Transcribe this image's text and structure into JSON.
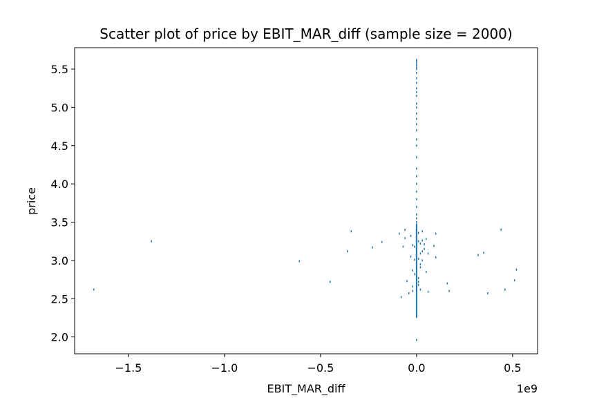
{
  "chart_data": {
    "type": "scatter",
    "title": "Scatter plot of price by EBIT_MAR_diff (sample size = 2000)",
    "xlabel": "EBIT_MAR_diff",
    "ylabel": "price",
    "x_offset_label": "1e9",
    "x_unit_multiplier": 1000000000,
    "xlim": [
      -1.78,
      0.63
    ],
    "ylim": [
      1.78,
      5.78
    ],
    "x_ticks": [
      -1.5,
      -1.0,
      -0.5,
      0.0,
      0.5
    ],
    "x_tick_labels": [
      "−1.5",
      "−1.0",
      "−0.5",
      "0.0",
      "0.5"
    ],
    "y_ticks": [
      2.0,
      2.5,
      3.0,
      3.5,
      4.0,
      4.5,
      5.0,
      5.5
    ],
    "y_tick_labels": [
      "2.0",
      "2.5",
      "3.0",
      "3.5",
      "4.0",
      "4.5",
      "5.0",
      "5.5"
    ],
    "grid": false,
    "legend": "none",
    "marker_color": "#1f77b4",
    "marker": "pixel",
    "series": [
      {
        "x": [
          -1.68,
          -1.38,
          -0.61,
          -0.45,
          -0.34,
          -0.36,
          -0.23,
          -0.18,
          -0.09,
          -0.07,
          -0.06,
          -0.05,
          -0.04,
          -0.08,
          -0.06,
          0.03,
          0.04,
          0.05,
          0.06,
          0.09,
          0.1,
          0.1,
          0.05,
          0.06,
          0.16,
          0.17,
          0.32,
          0.35,
          0.37,
          0.44,
          0.46,
          0.51,
          0.52,
          -0.03,
          -0.02,
          0.02,
          0.03,
          0.01,
          -0.01,
          0.02,
          0.01,
          -0.02,
          0.01,
          0.02,
          0.03,
          0.04,
          -0.03,
          -0.02,
          -0.01,
          0.01,
          0.02,
          0.01,
          -0.01,
          0.02,
          0.03,
          0.01,
          -0.02,
          0.0
        ],
        "y": [
          2.62,
          3.25,
          2.99,
          2.72,
          3.38,
          3.12,
          3.17,
          3.24,
          3.35,
          3.18,
          3.4,
          2.73,
          2.57,
          2.52,
          3.29,
          3.38,
          3.21,
          3.28,
          3.09,
          3.19,
          3.35,
          3.04,
          2.85,
          2.59,
          2.7,
          2.6,
          3.07,
          3.1,
          2.57,
          3.4,
          2.62,
          2.74,
          2.88,
          3.05,
          2.87,
          3.22,
          3.12,
          3.25,
          3.01,
          2.95,
          2.77,
          2.66,
          3.36,
          2.62,
          3.26,
          3.15,
          3.32,
          3.2,
          3.18,
          2.68,
          2.91,
          3.02,
          2.82,
          3.09,
          3.0,
          2.72,
          2.6,
          1.96
        ]
      },
      {
        "x": [
          0,
          0,
          0,
          0,
          0,
          0,
          0,
          0,
          0,
          0,
          0,
          0,
          0,
          0,
          0,
          0,
          0,
          0,
          0,
          0,
          0,
          0,
          0,
          0,
          0,
          0,
          0,
          0,
          0,
          0,
          0,
          0,
          0,
          0,
          0
        ],
        "y": [
          2.26,
          2.3,
          2.35,
          2.4,
          2.45,
          2.5,
          2.55,
          2.6,
          2.65,
          2.7,
          2.75,
          2.8,
          2.85,
          2.9,
          2.95,
          3.0,
          3.05,
          3.1,
          3.15,
          3.2,
          3.25,
          3.3,
          3.35,
          3.4,
          3.45,
          3.5,
          3.55,
          3.6,
          3.7,
          3.8,
          3.9,
          4.0,
          4.1,
          4.2,
          4.35
        ]
      },
      {
        "x": [
          0,
          0,
          0,
          0,
          0,
          0,
          0,
          0,
          0,
          0,
          0,
          0,
          0,
          0,
          0,
          0,
          0,
          0,
          0,
          0
        ],
        "y": [
          4.5,
          4.58,
          4.7,
          4.78,
          4.85,
          4.92,
          5.0,
          5.05,
          5.15,
          5.2,
          5.25,
          5.32,
          5.38,
          5.45,
          5.5,
          5.52,
          5.55,
          5.58,
          5.6,
          5.62
        ]
      }
    ]
  }
}
